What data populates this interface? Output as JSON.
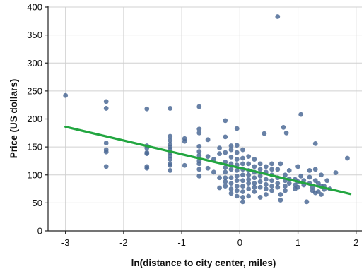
{
  "chart_data": {
    "type": "scatter",
    "xlabel": "ln(distance to city center, miles)",
    "ylabel": "Price (US dollars)",
    "xlim": [
      -3.3,
      2.1
    ],
    "ylim": [
      0,
      400
    ],
    "xticks": [
      -3,
      -2,
      -1,
      0,
      1,
      2
    ],
    "yticks": [
      0,
      50,
      100,
      150,
      200,
      250,
      300,
      350,
      400
    ],
    "grid": true,
    "colors": {
      "points": "#4d6b96",
      "fit_line": "#22a640",
      "grid": "#d0d0d0",
      "axis": "#222222"
    },
    "points": [
      [
        -3.0,
        242
      ],
      [
        -2.3,
        231
      ],
      [
        -2.3,
        219
      ],
      [
        -2.3,
        157
      ],
      [
        -2.3,
        145
      ],
      [
        -2.3,
        141
      ],
      [
        -2.3,
        115
      ],
      [
        -1.6,
        218
      ],
      [
        -1.6,
        152
      ],
      [
        -1.6,
        148
      ],
      [
        -1.6,
        140
      ],
      [
        -1.6,
        138
      ],
      [
        -1.6,
        115
      ],
      [
        -1.6,
        112
      ],
      [
        -1.2,
        219
      ],
      [
        -1.2,
        169
      ],
      [
        -1.2,
        162
      ],
      [
        -1.2,
        155
      ],
      [
        -1.2,
        150
      ],
      [
        -1.2,
        146
      ],
      [
        -1.2,
        140
      ],
      [
        -1.2,
        134
      ],
      [
        -1.2,
        128
      ],
      [
        -1.2,
        120
      ],
      [
        -1.2,
        117
      ],
      [
        -1.2,
        108
      ],
      [
        -0.95,
        165
      ],
      [
        -0.95,
        160
      ],
      [
        -0.95,
        117
      ],
      [
        -0.7,
        222
      ],
      [
        -0.7,
        182
      ],
      [
        -0.7,
        175
      ],
      [
        -0.7,
        151
      ],
      [
        -0.7,
        142
      ],
      [
        -0.7,
        135
      ],
      [
        -0.7,
        125
      ],
      [
        -0.7,
        120
      ],
      [
        -0.7,
        110
      ],
      [
        -0.7,
        98
      ],
      [
        -0.55,
        163
      ],
      [
        -0.55,
        133
      ],
      [
        -0.55,
        112
      ],
      [
        -0.45,
        128
      ],
      [
        -0.45,
        105
      ],
      [
        -0.35,
        148
      ],
      [
        -0.35,
        138
      ],
      [
        -0.35,
        95
      ],
      [
        -0.35,
        77
      ],
      [
        -0.25,
        197
      ],
      [
        -0.25,
        168
      ],
      [
        -0.25,
        140
      ],
      [
        -0.25,
        123
      ],
      [
        -0.25,
        113
      ],
      [
        -0.25,
        105
      ],
      [
        -0.25,
        95
      ],
      [
        -0.25,
        88
      ],
      [
        -0.25,
        80
      ],
      [
        -0.15,
        152
      ],
      [
        -0.15,
        145
      ],
      [
        -0.15,
        132
      ],
      [
        -0.15,
        120
      ],
      [
        -0.15,
        110
      ],
      [
        -0.15,
        95
      ],
      [
        -0.15,
        85
      ],
      [
        -0.15,
        75
      ],
      [
        -0.15,
        67
      ],
      [
        -0.05,
        183
      ],
      [
        -0.05,
        153
      ],
      [
        -0.05,
        140
      ],
      [
        -0.05,
        128
      ],
      [
        -0.05,
        118
      ],
      [
        -0.05,
        108
      ],
      [
        -0.05,
        98
      ],
      [
        -0.05,
        90
      ],
      [
        -0.05,
        80
      ],
      [
        -0.05,
        72
      ],
      [
        -0.05,
        62
      ],
      [
        0.05,
        145
      ],
      [
        0.05,
        130
      ],
      [
        0.05,
        120
      ],
      [
        0.05,
        110
      ],
      [
        0.05,
        100
      ],
      [
        0.05,
        90
      ],
      [
        0.05,
        80
      ],
      [
        0.05,
        70
      ],
      [
        0.05,
        60
      ],
      [
        0.05,
        52
      ],
      [
        0.15,
        133
      ],
      [
        0.15,
        120
      ],
      [
        0.15,
        108
      ],
      [
        0.15,
        100
      ],
      [
        0.15,
        92
      ],
      [
        0.15,
        85
      ],
      [
        0.15,
        75
      ],
      [
        0.15,
        62
      ],
      [
        0.25,
        128
      ],
      [
        0.25,
        115
      ],
      [
        0.25,
        105
      ],
      [
        0.25,
        95
      ],
      [
        0.25,
        85
      ],
      [
        0.25,
        78
      ],
      [
        0.25,
        70
      ],
      [
        0.35,
        120
      ],
      [
        0.35,
        110
      ],
      [
        0.35,
        98
      ],
      [
        0.35,
        88
      ],
      [
        0.35,
        78
      ],
      [
        0.35,
        60
      ],
      [
        0.42,
        174
      ],
      [
        0.45,
        115
      ],
      [
        0.45,
        105
      ],
      [
        0.45,
        92
      ],
      [
        0.45,
        83
      ],
      [
        0.45,
        75
      ],
      [
        0.45,
        65
      ],
      [
        0.55,
        120
      ],
      [
        0.55,
        110
      ],
      [
        0.55,
        100
      ],
      [
        0.55,
        90
      ],
      [
        0.55,
        80
      ],
      [
        0.55,
        72
      ],
      [
        0.65,
        383
      ],
      [
        0.65,
        110
      ],
      [
        0.65,
        95
      ],
      [
        0.65,
        85
      ],
      [
        0.65,
        78
      ],
      [
        0.7,
        120
      ],
      [
        0.7,
        65
      ],
      [
        0.7,
        55
      ],
      [
        0.75,
        185
      ],
      [
        0.78,
        100
      ],
      [
        0.78,
        90
      ],
      [
        0.78,
        80
      ],
      [
        0.78,
        72
      ],
      [
        0.8,
        175
      ],
      [
        0.85,
        108
      ],
      [
        0.85,
        93
      ],
      [
        0.85,
        85
      ],
      [
        0.95,
        92
      ],
      [
        0.95,
        82
      ],
      [
        0.95,
        75
      ],
      [
        1.0,
        115
      ],
      [
        1.0,
        88
      ],
      [
        1.0,
        78
      ],
      [
        1.05,
        208
      ],
      [
        1.05,
        98
      ],
      [
        1.1,
        90
      ],
      [
        1.1,
        82
      ],
      [
        1.15,
        52
      ],
      [
        1.2,
        108
      ],
      [
        1.2,
        96
      ],
      [
        1.2,
        85
      ],
      [
        1.25,
        78
      ],
      [
        1.25,
        72
      ],
      [
        1.3,
        156
      ],
      [
        1.3,
        110
      ],
      [
        1.3,
        90
      ],
      [
        1.3,
        68
      ],
      [
        1.35,
        85
      ],
      [
        1.35,
        70
      ],
      [
        1.4,
        100
      ],
      [
        1.4,
        80
      ],
      [
        1.4,
        65
      ],
      [
        1.45,
        80
      ],
      [
        1.45,
        74
      ],
      [
        1.5,
        90
      ],
      [
        1.55,
        75
      ],
      [
        1.65,
        104
      ],
      [
        1.85,
        130
      ]
    ],
    "fit_line": {
      "x": [
        -3.0,
        1.9
      ],
      "y": [
        186,
        66
      ]
    }
  }
}
